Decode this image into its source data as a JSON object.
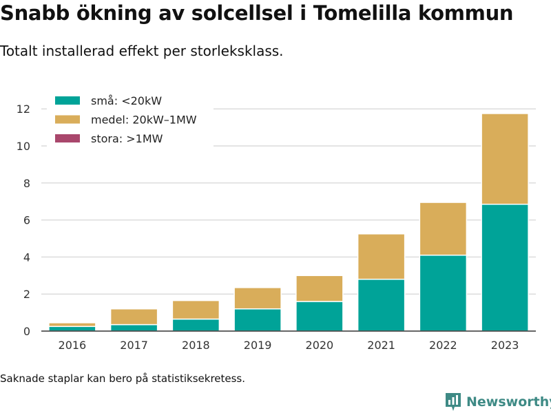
{
  "title": "Snabb ökning av solcellsel i Tomelilla kommun",
  "subtitle": "Totalt installerad effekt per storleksklass.",
  "footnote": "Saknade staplar kan bero på statistiksekretess.",
  "brand": {
    "name": "Newsworthy",
    "icon": "bar-chart-logo-icon",
    "color": "#3e8a85"
  },
  "chart_data": {
    "type": "bar",
    "stacked": true,
    "categories": [
      "2016",
      "2017",
      "2018",
      "2019",
      "2020",
      "2021",
      "2022",
      "2023"
    ],
    "series": [
      {
        "name": "små: <20kW",
        "color": "#00a398",
        "values": [
          0.25,
          0.35,
          0.65,
          1.2,
          1.6,
          2.8,
          4.1,
          6.85
        ]
      },
      {
        "name": "medel: 20kW–1MW",
        "color": "#d9ad5a",
        "values": [
          0.2,
          0.85,
          1.0,
          1.15,
          1.4,
          2.45,
          2.85,
          4.9
        ]
      },
      {
        "name": "stora: >1MW",
        "color": "#a9476c",
        "values": [
          0,
          0,
          0,
          0,
          0,
          0,
          0,
          0
        ]
      }
    ],
    "ylim": [
      0,
      12.5
    ],
    "yticks": [
      0,
      2,
      4,
      6,
      8,
      10,
      12
    ],
    "grid": true,
    "legend_position": "top-left",
    "xlabel": "",
    "ylabel": ""
  }
}
